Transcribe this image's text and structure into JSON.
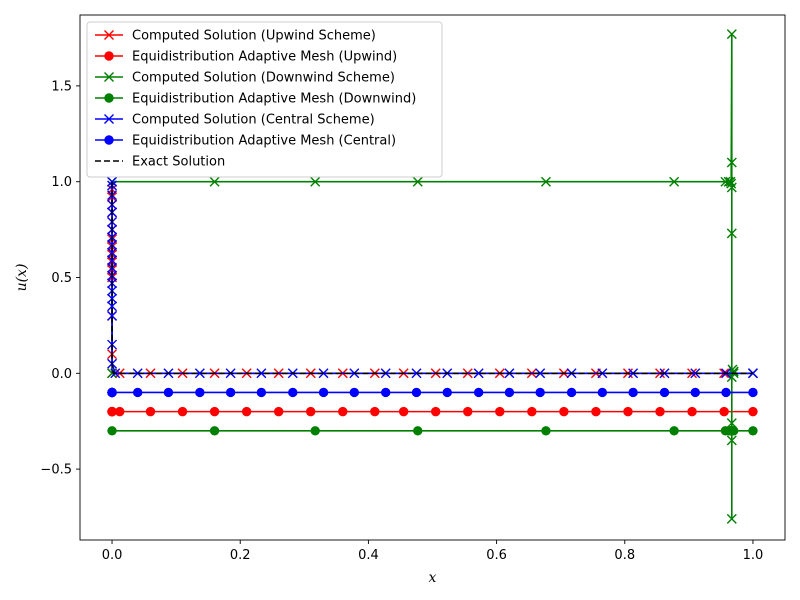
{
  "chart_data": {
    "type": "line",
    "title": "",
    "xlabel": "x",
    "ylabel": "u(x)",
    "xlim": [
      -0.05,
      1.05
    ],
    "ylim": [
      -0.87,
      1.87
    ],
    "xticks": [
      0.0,
      0.2,
      0.4,
      0.6,
      0.8,
      1.0
    ],
    "xtick_labels": [
      "0.0",
      "0.2",
      "0.4",
      "0.6",
      "0.8",
      "1.0"
    ],
    "yticks": [
      -0.5,
      0.0,
      0.5,
      1.0,
      1.5
    ],
    "ytick_labels": [
      "−0.5",
      "0.0",
      "0.5",
      "1.0",
      "1.5"
    ],
    "grid": false,
    "legend_position": "top-left",
    "series": [
      {
        "name": "Computed Solution (Upwind Scheme)",
        "color": "#ff0000",
        "marker": "x",
        "linestyle": "solid",
        "x": [
          0.0,
          0.0,
          0.0,
          0.0,
          0.0,
          0.0,
          0.0,
          0.0,
          0.0,
          0.0,
          0.0,
          0.0,
          0.0,
          0.0,
          0.0,
          0.0,
          0.012,
          0.06,
          0.11,
          0.16,
          0.21,
          0.26,
          0.31,
          0.36,
          0.41,
          0.455,
          0.505,
          0.555,
          0.605,
          0.655,
          0.705,
          0.755,
          0.805,
          0.855,
          0.905,
          0.955,
          1.0
        ],
        "y": [
          1.0,
          0.96,
          0.92,
          0.88,
          0.84,
          0.79,
          0.75,
          0.7,
          0.66,
          0.62,
          0.58,
          0.54,
          0.5,
          0.3,
          0.1,
          0.0,
          0.0,
          0.0,
          0.0,
          0.0,
          0.0,
          0.0,
          0.0,
          0.0,
          0.0,
          0.0,
          0.0,
          0.0,
          0.0,
          0.0,
          0.0,
          0.0,
          0.0,
          0.0,
          0.0,
          0.0,
          0.0
        ]
      },
      {
        "name": "Equidistribution Adaptive Mesh (Upwind)",
        "color": "#ff0000",
        "marker": "o",
        "linestyle": "solid",
        "x": [
          0.0,
          0.0,
          0.0,
          0.0,
          0.0,
          0.012,
          0.06,
          0.11,
          0.16,
          0.21,
          0.26,
          0.31,
          0.36,
          0.41,
          0.455,
          0.505,
          0.555,
          0.605,
          0.655,
          0.705,
          0.755,
          0.805,
          0.855,
          0.905,
          0.955,
          1.0
        ],
        "y": [
          -0.2,
          -0.2,
          -0.2,
          -0.2,
          -0.2,
          -0.2,
          -0.2,
          -0.2,
          -0.2,
          -0.2,
          -0.2,
          -0.2,
          -0.2,
          -0.2,
          -0.2,
          -0.2,
          -0.2,
          -0.2,
          -0.2,
          -0.2,
          -0.2,
          -0.2,
          -0.2,
          -0.2,
          -0.2,
          -0.2
        ]
      },
      {
        "name": "Computed Solution (Downwind Scheme)",
        "color": "#008000",
        "marker": "x",
        "linestyle": "solid",
        "x": [
          0.0,
          0.0,
          0.16,
          0.317,
          0.477,
          0.677,
          0.877,
          0.957,
          0.962,
          0.965,
          0.966,
          0.967,
          0.967,
          0.967,
          0.967,
          0.967,
          0.967,
          0.967,
          0.967,
          0.968,
          0.97,
          0.97,
          1.0
        ],
        "y": [
          0.0,
          1.0,
          1.0,
          1.0,
          1.0,
          1.0,
          1.0,
          1.0,
          1.0,
          1.0,
          0.99,
          1.77,
          -0.76,
          1.1,
          0.73,
          0.97,
          -0.35,
          -0.26,
          -0.02,
          0.02,
          0.01,
          0.0,
          0.0
        ]
      },
      {
        "name": "Equidistribution Adaptive Mesh (Downwind)",
        "color": "#008000",
        "marker": "o",
        "linestyle": "solid",
        "x": [
          0.0,
          0.16,
          0.317,
          0.477,
          0.677,
          0.877,
          0.957,
          0.962,
          0.965,
          0.967,
          0.967,
          0.968,
          0.97,
          1.0
        ],
        "y": [
          -0.3,
          -0.3,
          -0.3,
          -0.3,
          -0.3,
          -0.3,
          -0.3,
          -0.3,
          -0.3,
          -0.3,
          -0.3,
          -0.3,
          -0.3,
          -0.3
        ]
      },
      {
        "name": "Computed Solution (Central Scheme)",
        "color": "#0000ff",
        "marker": "x",
        "linestyle": "solid",
        "x": [
          0.0,
          0.0,
          0.0,
          0.0,
          0.0,
          0.0,
          0.0,
          0.0,
          0.0,
          0.0,
          0.0,
          0.0,
          0.0,
          0.0,
          0.0,
          0.0,
          0.0,
          0.0,
          0.0,
          0.0,
          0.005,
          0.04,
          0.088,
          0.137,
          0.185,
          0.233,
          0.282,
          0.33,
          0.378,
          0.427,
          0.475,
          0.523,
          0.572,
          0.62,
          0.668,
          0.717,
          0.765,
          0.813,
          0.862,
          0.91,
          0.958,
          1.0
        ],
        "y": [
          1.0,
          0.98,
          0.93,
          0.88,
          0.84,
          0.79,
          0.75,
          0.71,
          0.67,
          0.63,
          0.59,
          0.55,
          0.51,
          0.47,
          0.43,
          0.39,
          0.35,
          0.3,
          0.15,
          0.05,
          0.0,
          0.0,
          0.0,
          0.0,
          0.0,
          0.0,
          0.0,
          0.0,
          0.0,
          0.0,
          0.0,
          0.0,
          0.0,
          0.0,
          0.0,
          0.0,
          0.0,
          0.0,
          0.0,
          0.0,
          0.0,
          0.0
        ]
      },
      {
        "name": "Equidistribution Adaptive Mesh (Central)",
        "color": "#0000ff",
        "marker": "o",
        "linestyle": "solid",
        "x": [
          0.0,
          0.0,
          0.0,
          0.0,
          0.0,
          0.0,
          0.0,
          0.0,
          0.04,
          0.088,
          0.137,
          0.185,
          0.233,
          0.282,
          0.33,
          0.378,
          0.427,
          0.475,
          0.523,
          0.572,
          0.62,
          0.668,
          0.717,
          0.765,
          0.813,
          0.862,
          0.91,
          0.958,
          1.0
        ],
        "y": [
          -0.1,
          -0.1,
          -0.1,
          -0.1,
          -0.1,
          -0.1,
          -0.1,
          -0.1,
          -0.1,
          -0.1,
          -0.1,
          -0.1,
          -0.1,
          -0.1,
          -0.1,
          -0.1,
          -0.1,
          -0.1,
          -0.1,
          -0.1,
          -0.1,
          -0.1,
          -0.1,
          -0.1,
          -0.1,
          -0.1,
          -0.1,
          -0.1,
          -0.1
        ]
      },
      {
        "name": "Exact Solution",
        "color": "#000000",
        "marker": "none",
        "linestyle": "dashed",
        "x": [
          0.0,
          0.0,
          0.0,
          0.0,
          0.0,
          0.0,
          0.002,
          0.01,
          0.1,
          0.3,
          0.5,
          0.7,
          0.9,
          1.0
        ],
        "y": [
          1.0,
          0.8,
          0.6,
          0.4,
          0.2,
          0.05,
          0.0,
          0.0,
          0.0,
          0.0,
          0.0,
          0.0,
          0.0,
          0.0
        ]
      }
    ]
  }
}
